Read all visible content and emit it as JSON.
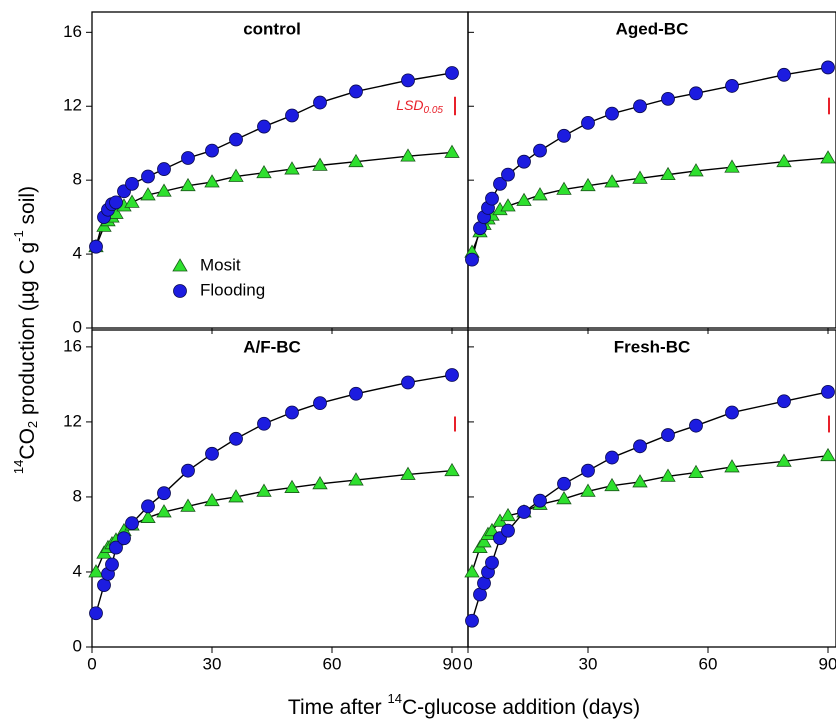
{
  "chart_data": [
    {
      "type": "scatter",
      "title": "control",
      "x": [
        1,
        3,
        4,
        5,
        6,
        8,
        10,
        14,
        18,
        24,
        30,
        36,
        43,
        50,
        57,
        66,
        79,
        90
      ],
      "series": [
        {
          "name": "Mosit",
          "color": "#2ee02e",
          "marker": "triangle",
          "values": [
            4.4,
            5.5,
            5.8,
            6.0,
            6.2,
            6.6,
            6.8,
            7.2,
            7.4,
            7.7,
            7.9,
            8.2,
            8.4,
            8.6,
            8.8,
            9.0,
            9.3,
            9.5
          ]
        },
        {
          "name": "Flooding",
          "color": "#1c1ce0",
          "marker": "circle",
          "values": [
            4.4,
            6.0,
            6.4,
            6.7,
            6.8,
            7.4,
            7.8,
            8.2,
            8.6,
            9.2,
            9.6,
            10.2,
            10.9,
            11.5,
            12.2,
            12.8,
            13.4,
            13.8
          ]
        }
      ],
      "xlim": [
        0,
        94
      ],
      "ylim": [
        0,
        17.1
      ],
      "xticks": [
        0,
        30,
        60,
        90
      ],
      "yticks": [
        0,
        4,
        8,
        12,
        16
      ],
      "legend": "lower left",
      "lsd": {
        "label": "LSD",
        "subscript": "0.05",
        "value": 1.0
      }
    },
    {
      "type": "scatter",
      "title": "Aged-BC",
      "x": [
        1,
        3,
        4,
        5,
        6,
        8,
        10,
        14,
        18,
        24,
        30,
        36,
        43,
        50,
        57,
        66,
        79,
        90
      ],
      "series": [
        {
          "color": "#2ee02e",
          "marker": "triangle",
          "values": [
            4.1,
            5.2,
            5.6,
            5.9,
            6.1,
            6.4,
            6.6,
            6.9,
            7.2,
            7.5,
            7.7,
            7.9,
            8.1,
            8.3,
            8.5,
            8.7,
            9.0,
            9.2
          ]
        },
        {
          "color": "#1c1ce0",
          "marker": "circle",
          "values": [
            3.7,
            5.4,
            6.0,
            6.5,
            7.0,
            7.8,
            8.3,
            9.0,
            9.6,
            10.4,
            11.1,
            11.6,
            12.0,
            12.4,
            12.7,
            13.1,
            13.7,
            14.1
          ]
        }
      ],
      "xlim": [
        0,
        92
      ],
      "ylim": [
        0,
        17.1
      ],
      "xticks": [
        0,
        30,
        60,
        90
      ],
      "yticks": [
        0,
        4,
        8,
        12,
        16
      ],
      "lsd": {
        "value": 0.9
      }
    },
    {
      "type": "scatter",
      "title": "A/F-BC",
      "x": [
        1,
        3,
        4,
        5,
        6,
        8,
        10,
        14,
        18,
        24,
        30,
        36,
        43,
        50,
        57,
        66,
        79,
        90
      ],
      "series": [
        {
          "color": "#2ee02e",
          "marker": "triangle",
          "values": [
            4.0,
            5.0,
            5.3,
            5.5,
            5.7,
            6.2,
            6.5,
            6.9,
            7.2,
            7.5,
            7.8,
            8.0,
            8.3,
            8.5,
            8.7,
            8.9,
            9.2,
            9.4
          ]
        },
        {
          "color": "#1c1ce0",
          "marker": "circle",
          "values": [
            1.8,
            3.3,
            3.9,
            4.4,
            5.3,
            5.8,
            6.6,
            7.5,
            8.2,
            9.4,
            10.3,
            11.1,
            11.9,
            12.5,
            13.0,
            13.5,
            14.1,
            14.5
          ]
        }
      ],
      "xlim": [
        0,
        94
      ],
      "ylim": [
        0,
        16.9
      ],
      "xticks": [
        0,
        30,
        60,
        90
      ],
      "yticks": [
        0,
        4,
        8,
        12,
        16
      ],
      "lsd": {
        "value": 0.8
      }
    },
    {
      "type": "scatter",
      "title": "Fresh-BC",
      "x": [
        1,
        3,
        4,
        5,
        6,
        8,
        10,
        14,
        18,
        24,
        30,
        36,
        43,
        50,
        57,
        66,
        79,
        90
      ],
      "series": [
        {
          "color": "#2ee02e",
          "marker": "triangle",
          "values": [
            4.0,
            5.3,
            5.6,
            6.0,
            6.2,
            6.7,
            7.0,
            7.2,
            7.6,
            7.9,
            8.3,
            8.6,
            8.8,
            9.1,
            9.3,
            9.6,
            9.9,
            10.2
          ]
        },
        {
          "color": "#1c1ce0",
          "marker": "circle",
          "values": [
            1.4,
            2.8,
            3.4,
            4.0,
            4.5,
            5.8,
            6.2,
            7.2,
            7.8,
            8.7,
            9.4,
            10.1,
            10.7,
            11.3,
            11.8,
            12.5,
            13.1,
            13.6
          ]
        }
      ],
      "xlim": [
        0,
        92
      ],
      "ylim": [
        0,
        16.9
      ],
      "xticks": [
        0,
        30,
        60,
        90
      ],
      "yticks": [
        0,
        4,
        8,
        12,
        16
      ],
      "lsd": {
        "value": 0.9
      }
    }
  ],
  "x_label": [
    "Time after ",
    "14",
    "C-glucose addition (days)"
  ],
  "y_label": [
    "14",
    "CO",
    "2",
    " production (µg C g",
    "-1",
    " soil)"
  ]
}
